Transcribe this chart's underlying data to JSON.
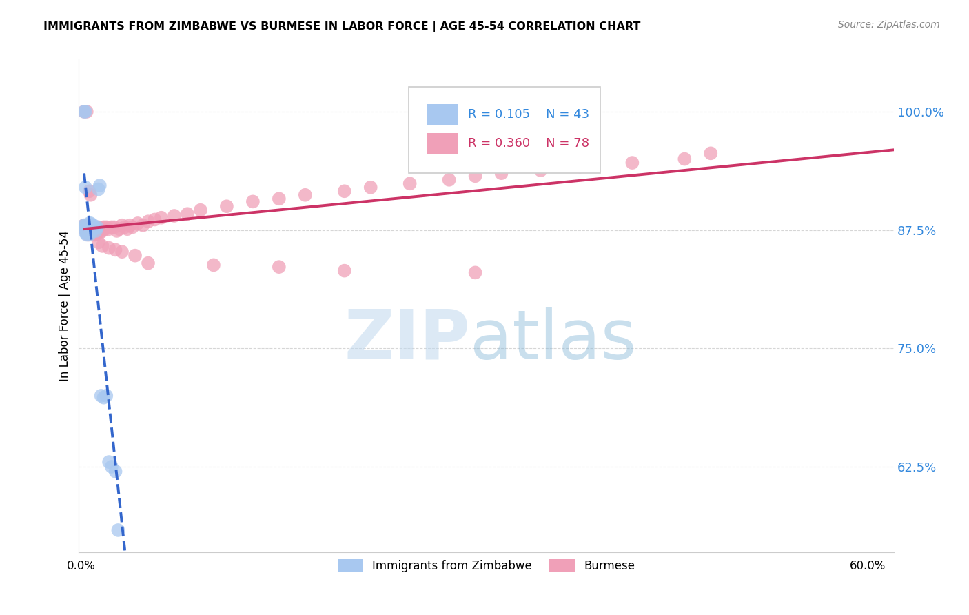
{
  "title": "IMMIGRANTS FROM ZIMBABWE VS BURMESE IN LABOR FORCE | AGE 45-54 CORRELATION CHART",
  "source": "Source: ZipAtlas.com",
  "ylabel": "In Labor Force | Age 45-54",
  "yticks": [
    0.625,
    0.75,
    0.875,
    1.0
  ],
  "ytick_labels": [
    "62.5%",
    "75.0%",
    "87.5%",
    "100.0%"
  ],
  "xlim": [
    -0.003,
    0.62
  ],
  "ylim": [
    0.535,
    1.055
  ],
  "zimbabwe_color": "#a8c8f0",
  "zimbabwe_line_color": "#3366cc",
  "burmese_color": "#f0a0b8",
  "burmese_line_color": "#cc3366",
  "legend_R_zimbabwe": "0.105",
  "legend_N_zimbabwe": "43",
  "legend_R_burmese": "0.360",
  "legend_N_burmese": "78",
  "legend_label_zimbabwe": "Immigrants from Zimbabwe",
  "legend_label_burmese": "Burmese",
  "watermark_zip": "ZIP",
  "watermark_atlas": "atlas",
  "zimbabwe_x": [
    0.001,
    0.002,
    0.002,
    0.002,
    0.002,
    0.003,
    0.003,
    0.003,
    0.003,
    0.004,
    0.004,
    0.004,
    0.005,
    0.005,
    0.005,
    0.005,
    0.005,
    0.005,
    0.006,
    0.006,
    0.006,
    0.006,
    0.007,
    0.007,
    0.007,
    0.008,
    0.008,
    0.009,
    0.01,
    0.01,
    0.011,
    0.012,
    0.013,
    0.014,
    0.016,
    0.018,
    0.02,
    0.022,
    0.025,
    0.027,
    0.001,
    0.002,
    0.002
  ],
  "zimbabwe_y": [
    0.88,
    0.88,
    0.878,
    0.875,
    0.872,
    0.878,
    0.875,
    0.872,
    0.87,
    0.876,
    0.875,
    0.872,
    0.882,
    0.879,
    0.876,
    0.875,
    0.872,
    0.87,
    0.882,
    0.88,
    0.877,
    0.874,
    0.88,
    0.877,
    0.874,
    0.88,
    0.876,
    0.878,
    0.877,
    0.874,
    0.878,
    0.918,
    0.922,
    0.7,
    0.698,
    0.7,
    0.63,
    0.625,
    0.62,
    0.558,
    1.0,
    1.0,
    0.92
  ],
  "burmese_x": [
    0.001,
    0.002,
    0.002,
    0.003,
    0.003,
    0.004,
    0.004,
    0.005,
    0.005,
    0.006,
    0.006,
    0.007,
    0.007,
    0.008,
    0.008,
    0.009,
    0.009,
    0.01,
    0.01,
    0.011,
    0.012,
    0.012,
    0.013,
    0.014,
    0.015,
    0.016,
    0.017,
    0.018,
    0.02,
    0.022,
    0.024,
    0.026,
    0.028,
    0.03,
    0.032,
    0.034,
    0.036,
    0.038,
    0.042,
    0.046,
    0.05,
    0.055,
    0.06,
    0.07,
    0.08,
    0.09,
    0.11,
    0.13,
    0.15,
    0.17,
    0.2,
    0.22,
    0.25,
    0.28,
    0.3,
    0.32,
    0.35,
    0.38,
    0.42,
    0.46,
    0.001,
    0.003,
    0.005,
    0.006,
    0.007,
    0.01,
    0.012,
    0.015,
    0.02,
    0.025,
    0.03,
    0.04,
    0.05,
    0.1,
    0.15,
    0.2,
    0.3,
    0.48
  ],
  "burmese_y": [
    0.88,
    0.878,
    0.874,
    0.876,
    0.872,
    0.874,
    0.87,
    0.876,
    0.872,
    0.878,
    0.874,
    0.876,
    0.87,
    0.876,
    0.872,
    0.874,
    0.87,
    0.878,
    0.874,
    0.876,
    0.878,
    0.874,
    0.872,
    0.876,
    0.874,
    0.878,
    0.876,
    0.878,
    0.876,
    0.878,
    0.878,
    0.874,
    0.876,
    0.88,
    0.878,
    0.876,
    0.88,
    0.878,
    0.882,
    0.88,
    0.884,
    0.886,
    0.888,
    0.89,
    0.892,
    0.896,
    0.9,
    0.905,
    0.908,
    0.912,
    0.916,
    0.92,
    0.924,
    0.928,
    0.932,
    0.935,
    0.938,
    0.942,
    0.946,
    0.95,
    1.0,
    1.0,
    0.916,
    0.912,
    0.878,
    0.87,
    0.862,
    0.858,
    0.856,
    0.854,
    0.852,
    0.848,
    0.84,
    0.838,
    0.836,
    0.832,
    0.83,
    0.956
  ]
}
